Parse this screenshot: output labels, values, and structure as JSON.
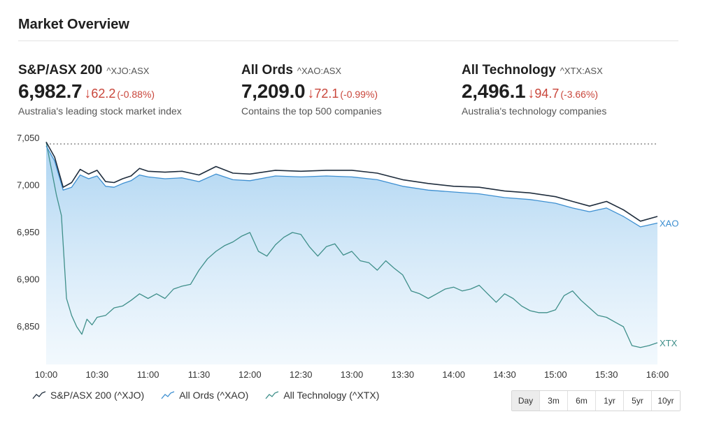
{
  "header": {
    "title": "Market Overview"
  },
  "indices": [
    {
      "name": "S&P/ASX 200",
      "ticker": "^XJO:ASX",
      "value": "6,982.7",
      "change": "62.2",
      "pct": "(-0.88%)",
      "desc": "Australia's leading stock market index"
    },
    {
      "name": "All Ords",
      "ticker": "^XAO:ASX",
      "value": "7,209.0",
      "change": "72.1",
      "pct": "(-0.99%)",
      "desc": "Contains the top 500 companies"
    },
    {
      "name": "All Technology",
      "ticker": "^XTX:ASX",
      "value": "2,496.1",
      "change": "94.7",
      "pct": "(-3.66%)",
      "desc": "Australia's technology companies"
    }
  ],
  "icons": {
    "down_arrow": "down-arrow-icon",
    "legend_line": "line-chart-icon"
  },
  "colors": {
    "negative": "#c9463b",
    "xjo_line": "#1f2d3d",
    "xao_line": "#3d8fd1",
    "xao_fill": "#bcdcf4",
    "xtx_line": "#3f8f8a"
  },
  "chart_data": {
    "type": "line",
    "title": "",
    "xlabel": "",
    "ylabel": "",
    "xlim": [
      "10:00",
      "16:00"
    ],
    "ylim": [
      6810,
      7050
    ],
    "x_ticks": [
      "10:00",
      "10:30",
      "11:00",
      "11:30",
      "12:00",
      "12:30",
      "13:00",
      "13:30",
      "14:00",
      "14:30",
      "15:00",
      "15:30",
      "16:00"
    ],
    "y_ticks": [
      "7,050",
      "7,000",
      "6,950",
      "6,900",
      "6,850"
    ],
    "y_tick_values": [
      7050,
      7000,
      6950,
      6900,
      6850
    ],
    "reference_line": {
      "value": 7044,
      "style": "dotted"
    },
    "grid": false,
    "legend_position": "bottom-left",
    "series": [
      {
        "name": "S&P/ASX 200 (^XJO)",
        "end_label": "",
        "x": [
          "10:00",
          "10:05",
          "10:10",
          "10:15",
          "10:20",
          "10:25",
          "10:30",
          "10:35",
          "10:40",
          "10:45",
          "10:50",
          "10:55",
          "11:00",
          "11:10",
          "11:20",
          "11:30",
          "11:40",
          "11:50",
          "12:00",
          "12:15",
          "12:30",
          "12:45",
          "13:00",
          "13:15",
          "13:30",
          "13:45",
          "14:00",
          "14:15",
          "14:30",
          "14:45",
          "15:00",
          "15:10",
          "15:20",
          "15:30",
          "15:40",
          "15:50",
          "16:00"
        ],
        "y": [
          7046,
          7030,
          6998,
          7003,
          7017,
          7012,
          7016,
          7004,
          7003,
          7007,
          7010,
          7018,
          7015,
          7014,
          7015,
          7011,
          7020,
          7013,
          7012,
          7016,
          7015,
          7016,
          7016,
          7013,
          7006,
          7002,
          6999,
          6998,
          6994,
          6992,
          6988,
          6983,
          6978,
          6983,
          6974,
          6962,
          6967
        ]
      },
      {
        "name": "All Ords (^XAO)",
        "end_label": "XAO",
        "x": [
          "10:00",
          "10:05",
          "10:10",
          "10:15",
          "10:20",
          "10:25",
          "10:30",
          "10:35",
          "10:40",
          "10:45",
          "10:50",
          "10:55",
          "11:00",
          "11:10",
          "11:20",
          "11:30",
          "11:40",
          "11:50",
          "12:00",
          "12:15",
          "12:30",
          "12:45",
          "13:00",
          "13:15",
          "13:30",
          "13:45",
          "14:00",
          "14:15",
          "14:30",
          "14:45",
          "15:00",
          "15:10",
          "15:20",
          "15:30",
          "15:40",
          "15:50",
          "16:00"
        ],
        "y": [
          7042,
          7026,
          6995,
          6998,
          7011,
          7007,
          7010,
          6999,
          6998,
          7002,
          7005,
          7011,
          7009,
          7007,
          7008,
          7004,
          7012,
          7006,
          7005,
          7010,
          7009,
          7010,
          7009,
          7006,
          6999,
          6995,
          6993,
          6991,
          6987,
          6985,
          6981,
          6976,
          6972,
          6976,
          6967,
          6956,
          6960
        ]
      },
      {
        "name": "All Technology (^XTX)",
        "end_label": "XTX",
        "x": [
          "10:00",
          "10:03",
          "10:06",
          "10:09",
          "10:12",
          "10:15",
          "10:18",
          "10:21",
          "10:24",
          "10:27",
          "10:30",
          "10:35",
          "10:40",
          "10:45",
          "10:50",
          "10:55",
          "11:00",
          "11:05",
          "11:10",
          "11:15",
          "11:20",
          "11:25",
          "11:30",
          "11:35",
          "11:40",
          "11:45",
          "11:50",
          "11:55",
          "12:00",
          "12:05",
          "12:10",
          "12:15",
          "12:20",
          "12:25",
          "12:30",
          "12:35",
          "12:40",
          "12:45",
          "12:50",
          "12:55",
          "13:00",
          "13:05",
          "13:10",
          "13:15",
          "13:20",
          "13:25",
          "13:30",
          "13:35",
          "13:40",
          "13:45",
          "13:50",
          "13:55",
          "14:00",
          "14:05",
          "14:10",
          "14:15",
          "14:20",
          "14:25",
          "14:30",
          "14:35",
          "14:40",
          "14:45",
          "14:50",
          "14:55",
          "15:00",
          "15:05",
          "15:10",
          "15:15",
          "15:20",
          "15:25",
          "15:30",
          "15:35",
          "15:40",
          "15:45",
          "15:50",
          "15:55",
          "16:00"
        ],
        "y": [
          7046,
          7018,
          6990,
          6968,
          6880,
          6862,
          6850,
          6842,
          6858,
          6852,
          6860,
          6862,
          6870,
          6872,
          6878,
          6885,
          6880,
          6885,
          6880,
          6890,
          6893,
          6895,
          6910,
          6922,
          6930,
          6936,
          6940,
          6946,
          6950,
          6930,
          6925,
          6937,
          6945,
          6950,
          6948,
          6935,
          6925,
          6935,
          6938,
          6926,
          6930,
          6920,
          6918,
          6910,
          6920,
          6912,
          6905,
          6888,
          6885,
          6880,
          6885,
          6890,
          6892,
          6888,
          6890,
          6894,
          6885,
          6876,
          6885,
          6880,
          6872,
          6867,
          6865,
          6865,
          6868,
          6883,
          6888,
          6878,
          6870,
          6862,
          6860,
          6855,
          6850,
          6830,
          6828,
          6830,
          6833
        ]
      }
    ]
  },
  "legend": [
    {
      "label": "S&P/ASX 200 (^XJO)"
    },
    {
      "label": "All Ords (^XAO)"
    },
    {
      "label": "All Technology (^XTX)"
    }
  ],
  "ranges": [
    {
      "label": "Day",
      "active": true
    },
    {
      "label": "3m",
      "active": false
    },
    {
      "label": "6m",
      "active": false
    },
    {
      "label": "1yr",
      "active": false
    },
    {
      "label": "5yr",
      "active": false
    },
    {
      "label": "10yr",
      "active": false
    }
  ]
}
